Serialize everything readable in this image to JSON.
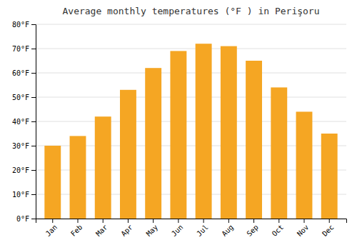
{
  "chart_data": {
    "type": "bar",
    "title": "Average monthly temperatures (°F ) in Perişoru",
    "categories": [
      "Jan",
      "Feb",
      "Mar",
      "Apr",
      "May",
      "Jun",
      "Jul",
      "Aug",
      "Sep",
      "Oct",
      "Nov",
      "Dec"
    ],
    "values": [
      30,
      34,
      42,
      53,
      62,
      69,
      72,
      71,
      65,
      54,
      44,
      35
    ],
    "color": "#F5A623",
    "ylim": [
      0,
      80
    ],
    "yticks": [
      {
        "value": 0,
        "label": "0°F"
      },
      {
        "value": 10,
        "label": "10°F"
      },
      {
        "value": 20,
        "label": "20°F"
      },
      {
        "value": 30,
        "label": "30°F"
      },
      {
        "value": 40,
        "label": "40°F"
      },
      {
        "value": 50,
        "label": "50°F"
      },
      {
        "value": 60,
        "label": "60°F"
      },
      {
        "value": 70,
        "label": "70°F"
      },
      {
        "value": 80,
        "label": "80°F"
      }
    ],
    "grid": true
  }
}
